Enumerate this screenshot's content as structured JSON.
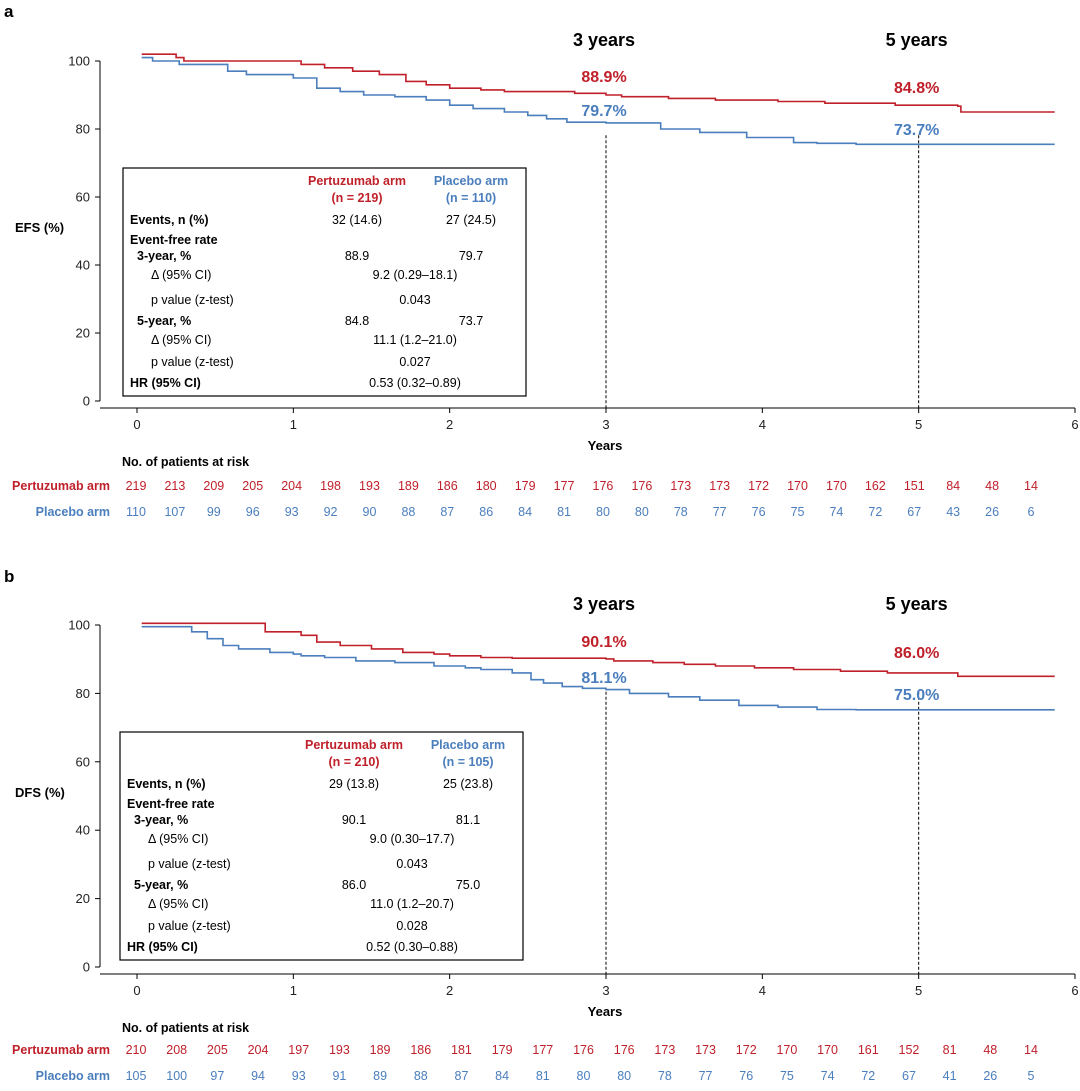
{
  "colors": {
    "pertuzumab": "#c0202a",
    "placebo": "#4a7ebd",
    "axis": "#000000"
  },
  "chart_data": [
    {
      "panel": "a",
      "type": "line",
      "ylabel": "EFS (%)",
      "xlabel": "Years",
      "xlim": [
        0,
        6
      ],
      "ylim": [
        0,
        100
      ],
      "xticks": [
        "0",
        "1",
        "2",
        "3",
        "4",
        "5",
        "6"
      ],
      "yticks": [
        "0",
        "20",
        "40",
        "60",
        "80",
        "100"
      ],
      "markers": [
        {
          "x": 3,
          "label": "3 years"
        },
        {
          "x": 5,
          "label": "5 years"
        }
      ],
      "series": [
        {
          "name": "Pertuzumab arm",
          "color": "#c0202a",
          "points": [
            [
              0.03,
              102
            ],
            [
              0.25,
              102
            ],
            [
              0.25,
              101
            ],
            [
              0.3,
              101
            ],
            [
              0.3,
              100
            ],
            [
              1.0,
              100
            ],
            [
              1.05,
              99
            ],
            [
              1.2,
              98
            ],
            [
              1.38,
              97
            ],
            [
              1.55,
              96
            ],
            [
              1.72,
              94
            ],
            [
              1.85,
              93
            ],
            [
              2.0,
              92
            ],
            [
              2.2,
              91.5
            ],
            [
              2.35,
              91
            ],
            [
              2.6,
              91
            ],
            [
              2.8,
              90.5
            ],
            [
              3.0,
              90
            ],
            [
              3.1,
              89.5
            ],
            [
              3.4,
              89
            ],
            [
              3.7,
              88.5
            ],
            [
              4.1,
              88.1
            ],
            [
              4.4,
              87.6
            ],
            [
              4.85,
              87
            ],
            [
              5.25,
              86.7
            ],
            [
              5.27,
              85
            ],
            [
              5.87,
              85
            ]
          ],
          "annotations": [
            {
              "x": 3,
              "y": 88.9,
              "label": "88.9%"
            },
            {
              "x": 5,
              "y": 84.8,
              "label": "84.8%"
            }
          ]
        },
        {
          "name": "Placebo arm",
          "color": "#4a7ebd",
          "points": [
            [
              0.03,
              101
            ],
            [
              0.1,
              101
            ],
            [
              0.1,
              100
            ],
            [
              0.27,
              100
            ],
            [
              0.27,
              99
            ],
            [
              0.55,
              99
            ],
            [
              0.58,
              97
            ],
            [
              0.7,
              96
            ],
            [
              0.85,
              96
            ],
            [
              1.0,
              95
            ],
            [
              1.15,
              92
            ],
            [
              1.3,
              91
            ],
            [
              1.45,
              90
            ],
            [
              1.65,
              89.5
            ],
            [
              1.85,
              88.5
            ],
            [
              2.0,
              87
            ],
            [
              2.15,
              86
            ],
            [
              2.35,
              85
            ],
            [
              2.5,
              84
            ],
            [
              2.62,
              83
            ],
            [
              2.75,
              82
            ],
            [
              2.95,
              82
            ],
            [
              3.0,
              81.8
            ],
            [
              3.3,
              81.8
            ],
            [
              3.35,
              80
            ],
            [
              3.6,
              79
            ],
            [
              3.9,
              77.5
            ],
            [
              4.2,
              76
            ],
            [
              4.35,
              75.8
            ],
            [
              4.6,
              75.5
            ],
            [
              5.87,
              75.5
            ]
          ],
          "annotations": [
            {
              "x": 3,
              "y": 79.7,
              "label": "79.7%"
            },
            {
              "x": 5,
              "y": 73.7,
              "label": "73.7%"
            }
          ]
        }
      ],
      "table": {
        "col1_header": [
          "Pertuzumab arm",
          "(n = 219)"
        ],
        "col2_header": [
          "Placebo arm",
          "(n = 110)"
        ],
        "events_label": "Events, n (%)",
        "events_p": "32 (14.6)",
        "events_b": "27 (24.5)",
        "efr_label": "Event-free rate",
        "y3_label": "3-year, %",
        "y3_p": "88.9",
        "y3_b": "79.7",
        "y3_delta_label": "Δ (95% CI)",
        "y3_delta": "9.2 (0.29–18.1)",
        "y3_pval_label": "p value (z-test)",
        "y3_pval": "0.043",
        "y5_label": "5-year, %",
        "y5_p": "84.8",
        "y5_b": "73.7",
        "y5_delta_label": "Δ (95% CI)",
        "y5_delta": "11.1 (1.2–21.0)",
        "y5_pval_label": "p value (z-test)",
        "y5_pval": "0.027",
        "hr_label": "HR (95% CI)",
        "hr": "0.53 (0.32–0.89)"
      },
      "at_risk": {
        "title": "No. of patients at risk",
        "pertuzumab_label": "Pertuzumab arm",
        "placebo_label": "Placebo arm",
        "pertuzumab": [
          "219",
          "213",
          "209",
          "205",
          "204",
          "198",
          "193",
          "189",
          "186",
          "180",
          "179",
          "177",
          "176",
          "176",
          "173",
          "173",
          "172",
          "170",
          "170",
          "162",
          "151",
          "84",
          "48",
          "14"
        ],
        "placebo": [
          "110",
          "107",
          "99",
          "96",
          "93",
          "92",
          "90",
          "88",
          "87",
          "86",
          "84",
          "81",
          "80",
          "80",
          "78",
          "77",
          "76",
          "75",
          "74",
          "72",
          "67",
          "43",
          "26",
          "6"
        ]
      }
    },
    {
      "panel": "b",
      "type": "line",
      "ylabel": "DFS (%)",
      "xlabel": "Years",
      "xlim": [
        0,
        6
      ],
      "ylim": [
        0,
        100
      ],
      "xticks": [
        "0",
        "1",
        "2",
        "3",
        "4",
        "5",
        "6"
      ],
      "yticks": [
        "0",
        "20",
        "40",
        "60",
        "80",
        "100"
      ],
      "markers": [
        {
          "x": 3,
          "label": "3 years"
        },
        {
          "x": 5,
          "label": "5 years"
        }
      ],
      "series": [
        {
          "name": "Pertuzumab arm",
          "color": "#c0202a",
          "points": [
            [
              0.03,
              100.5
            ],
            [
              0.8,
              100.5
            ],
            [
              0.82,
              98
            ],
            [
              1.0,
              98
            ],
            [
              1.05,
              97
            ],
            [
              1.15,
              95
            ],
            [
              1.3,
              94
            ],
            [
              1.5,
              93
            ],
            [
              1.7,
              92
            ],
            [
              1.9,
              91.5
            ],
            [
              2.0,
              91
            ],
            [
              2.2,
              90.5
            ],
            [
              2.4,
              90.3
            ],
            [
              3.0,
              90.1
            ],
            [
              3.05,
              89.5
            ],
            [
              3.3,
              89
            ],
            [
              3.5,
              88.5
            ],
            [
              3.7,
              88
            ],
            [
              3.95,
              87.5
            ],
            [
              4.2,
              87
            ],
            [
              4.5,
              86.5
            ],
            [
              4.8,
              86
            ],
            [
              5.2,
              86
            ],
            [
              5.25,
              85
            ],
            [
              5.87,
              85
            ]
          ],
          "annotations": [
            {
              "x": 3,
              "y": 90.1,
              "label": "90.1%"
            },
            {
              "x": 5,
              "y": 86.0,
              "label": "86.0%"
            }
          ]
        },
        {
          "name": "Placebo arm",
          "color": "#4a7ebd",
          "points": [
            [
              0.03,
              99.5
            ],
            [
              0.3,
              99.5
            ],
            [
              0.35,
              98
            ],
            [
              0.45,
              96
            ],
            [
              0.55,
              94
            ],
            [
              0.65,
              93
            ],
            [
              0.85,
              92
            ],
            [
              1.0,
              91.5
            ],
            [
              1.05,
              91
            ],
            [
              1.2,
              90.5
            ],
            [
              1.4,
              89.5
            ],
            [
              1.65,
              89
            ],
            [
              1.9,
              88
            ],
            [
              2.1,
              87.5
            ],
            [
              2.2,
              87
            ],
            [
              2.4,
              86
            ],
            [
              2.52,
              84
            ],
            [
              2.6,
              83
            ],
            [
              2.72,
              82
            ],
            [
              2.85,
              81.5
            ],
            [
              3.0,
              81.1
            ],
            [
              3.15,
              80
            ],
            [
              3.4,
              79
            ],
            [
              3.6,
              78
            ],
            [
              3.85,
              76.5
            ],
            [
              4.1,
              76
            ],
            [
              4.35,
              75.3
            ],
            [
              4.6,
              75.2
            ],
            [
              5.87,
              75.2
            ]
          ],
          "annotations": [
            {
              "x": 3,
              "y": 81.1,
              "label": "81.1%"
            },
            {
              "x": 5,
              "y": 75.0,
              "label": "75.0%"
            }
          ]
        }
      ],
      "table": {
        "col1_header": [
          "Pertuzumab arm",
          "(n = 210)"
        ],
        "col2_header": [
          "Placebo arm",
          "(n = 105)"
        ],
        "events_label": "Events, n (%)",
        "events_p": "29 (13.8)",
        "events_b": "25 (23.8)",
        "efr_label": "Event-free rate",
        "y3_label": "3-year, %",
        "y3_p": "90.1",
        "y3_b": "81.1",
        "y3_delta_label": "Δ (95% CI)",
        "y3_delta": "9.0 (0.30–17.7)",
        "y3_pval_label": "p value (z-test)",
        "y3_pval": "0.043",
        "y5_label": "5-year, %",
        "y5_p": "86.0",
        "y5_b": "75.0",
        "y5_delta_label": "Δ (95% CI)",
        "y5_delta": "11.0 (1.2–20.7)",
        "y5_pval_label": "p value (z-test)",
        "y5_pval": "0.028",
        "hr_label": "HR (95% CI)",
        "hr": "0.52 (0.30–0.88)"
      },
      "at_risk": {
        "title": "No. of patients at risk",
        "pertuzumab_label": "Pertuzumab arm",
        "placebo_label": "Placebo arm",
        "pertuzumab": [
          "210",
          "208",
          "205",
          "204",
          "197",
          "193",
          "189",
          "186",
          "181",
          "179",
          "177",
          "176",
          "176",
          "173",
          "173",
          "172",
          "170",
          "170",
          "161",
          "152",
          "81",
          "48",
          "14"
        ],
        "placebo": [
          "105",
          "100",
          "97",
          "94",
          "93",
          "91",
          "89",
          "88",
          "87",
          "84",
          "81",
          "80",
          "80",
          "78",
          "77",
          "76",
          "75",
          "74",
          "72",
          "67",
          "41",
          "26",
          "5"
        ]
      }
    }
  ]
}
